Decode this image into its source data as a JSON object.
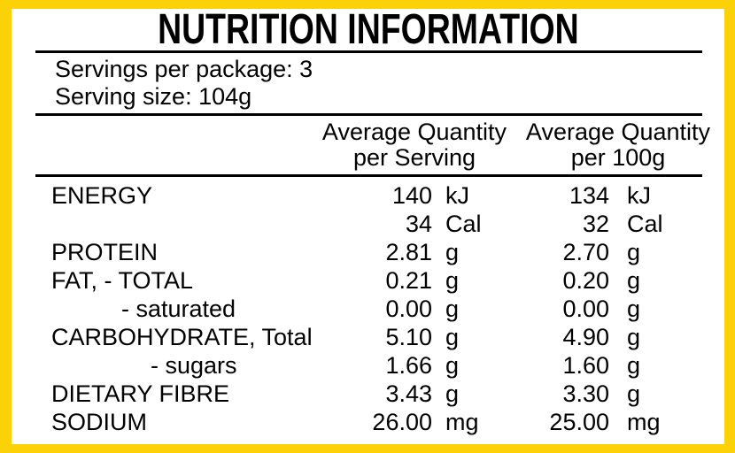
{
  "colors": {
    "border_yellow": "#FBD108",
    "text": "#000000",
    "background": "#FFFFFF"
  },
  "title": "NUTRITION INFORMATION",
  "serving_info": {
    "servings_per_package": "Servings per package: 3",
    "serving_size": "Serving size: 104g"
  },
  "table": {
    "column_headers": [
      {
        "line1": "Average Quantity",
        "line2": "per Serving"
      },
      {
        "line1": "Average Quantity",
        "line2": "per 100g"
      }
    ],
    "rows": [
      {
        "label": "ENERGY",
        "value_per_serving": "140",
        "unit_per_serving": "kJ",
        "value_per_100g": "134",
        "unit_per_100g": "kJ"
      },
      {
        "label": "",
        "value_per_serving": "34",
        "unit_per_serving": "Cal",
        "value_per_100g": "32",
        "unit_per_100g": "Cal"
      },
      {
        "label": "PROTEIN",
        "value_per_serving": "2.81",
        "unit_per_serving": "g",
        "value_per_100g": "2.70",
        "unit_per_100g": "g"
      },
      {
        "label": "FAT, - TOTAL",
        "value_per_serving": "0.21",
        "unit_per_serving": "g",
        "value_per_100g": "0.20",
        "unit_per_100g": "g"
      },
      {
        "label": "- saturated",
        "value_per_serving": "0.00",
        "unit_per_serving": "g",
        "value_per_100g": "0.00",
        "unit_per_100g": "g"
      },
      {
        "label": "CARBOHYDRATE, Total",
        "value_per_serving": "5.10",
        "unit_per_serving": "g",
        "value_per_100g": "4.90",
        "unit_per_100g": "g"
      },
      {
        "label": "- sugars",
        "value_per_serving": "1.66",
        "unit_per_serving": "g",
        "value_per_100g": "1.60",
        "unit_per_100g": "g"
      },
      {
        "label": "DIETARY FIBRE",
        "value_per_serving": "3.43",
        "unit_per_serving": "g",
        "value_per_100g": "3.30",
        "unit_per_100g": "g"
      },
      {
        "label": "SODIUM",
        "value_per_serving": "26.00",
        "unit_per_serving": "mg",
        "value_per_100g": "25.00",
        "unit_per_100g": "mg"
      }
    ]
  }
}
